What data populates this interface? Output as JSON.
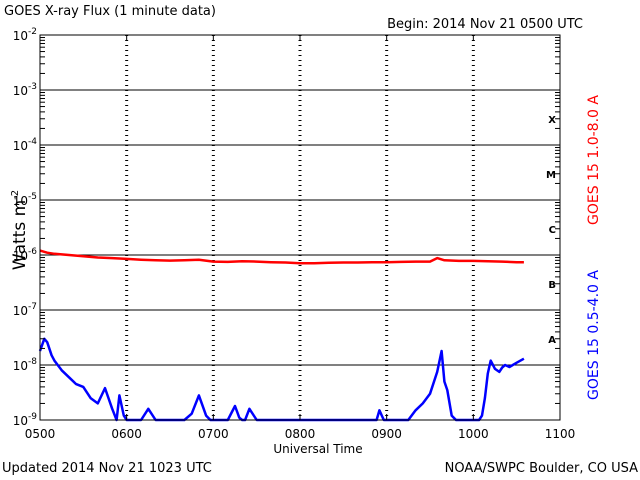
{
  "chart_data": {
    "type": "line",
    "title": "GOES X-ray Flux (1 minute data)",
    "begin": "Begin: 2014 Nov 21 0500 UTC",
    "xlabel": "Universal Time",
    "ylabel": "Watts m",
    "ylabel_exp": "-2",
    "y_scale": "log",
    "ylim": [
      1e-09,
      0.01
    ],
    "xlim": [
      "0500",
      "1100"
    ],
    "grid": true,
    "x_ticks": [
      "0500",
      "0600",
      "0700",
      "0800",
      "0900",
      "1000",
      "1100"
    ],
    "y_ticks": [
      {
        "value": 0.01,
        "base": "10",
        "exp": "-2"
      },
      {
        "value": 0.001,
        "base": "10",
        "exp": "-3"
      },
      {
        "value": 0.0001,
        "base": "10",
        "exp": "-4"
      },
      {
        "value": 1e-05,
        "base": "10",
        "exp": "-5"
      },
      {
        "value": 1e-06,
        "base": "10",
        "exp": "-6"
      },
      {
        "value": 1e-07,
        "base": "10",
        "exp": "-7"
      },
      {
        "value": 1e-08,
        "base": "10",
        "exp": "-8"
      },
      {
        "value": 1e-09,
        "base": "10",
        "exp": "-9"
      }
    ],
    "flare_classes": [
      {
        "label": "X",
        "value": 0.0003
      },
      {
        "label": "M",
        "value": 3e-05
      },
      {
        "label": "C",
        "value": 3e-06
      },
      {
        "label": "B",
        "value": 3e-07
      },
      {
        "label": "A",
        "value": 3e-08
      }
    ],
    "series": [
      {
        "name": "GOES 15 1.0-8.0 A",
        "color": "#ff0000",
        "x": [
          "0500",
          "0505",
          "0510",
          "0520",
          "0530",
          "0540",
          "0550",
          "0600",
          "0610",
          "0620",
          "0630",
          "0640",
          "0650",
          "0700",
          "0710",
          "0720",
          "0730",
          "0740",
          "0750",
          "0800",
          "0810",
          "0820",
          "0830",
          "0840",
          "0850",
          "0900",
          "0910",
          "0920",
          "0930",
          "0935",
          "0940",
          "0950",
          "1000",
          "1010",
          "1020",
          "1030",
          "1035"
        ],
        "y": [
          1.2e-06,
          1.1e-06,
          1.05e-06,
          1e-06,
          9.5e-07,
          9e-07,
          8.8e-07,
          8.5e-07,
          8.2e-07,
          8e-07,
          7.9e-07,
          8e-07,
          8.2e-07,
          7.6e-07,
          7.5e-07,
          7.7e-07,
          7.6e-07,
          7.4e-07,
          7.3e-07,
          7.1e-07,
          7.1e-07,
          7.2e-07,
          7.3e-07,
          7.3e-07,
          7.4e-07,
          7.4e-07,
          7.5e-07,
          7.6e-07,
          7.6e-07,
          8.8e-07,
          8e-07,
          7.8e-07,
          7.8e-07,
          7.7e-07,
          7.6e-07,
          7.4e-07,
          7.4e-07
        ]
      },
      {
        "name": "GOES 15 0.5-4.0 A",
        "color": "#0000ff",
        "x": [
          "0500",
          "0503",
          "0505",
          "0508",
          "0510",
          "0515",
          "0520",
          "0525",
          "0530",
          "0535",
          "0540",
          "0545",
          "0550",
          "0553",
          "0555",
          "0558",
          "0600",
          "0605",
          "0610",
          "0615",
          "0620",
          "0625",
          "0630",
          "0635",
          "0640",
          "0645",
          "0650",
          "0655",
          "0658",
          "0700",
          "0703",
          "0705",
          "0710",
          "0715",
          "0718",
          "0720",
          "0722",
          "0725",
          "0730",
          "0735",
          "0740",
          "0745",
          "0750",
          "0755",
          "0800",
          "0810",
          "0820",
          "0830",
          "0835",
          "0838",
          "0840",
          "0845",
          "0850",
          "0853",
          "0855",
          "0858",
          "0900",
          "0902",
          "0905",
          "0908",
          "0910",
          "0915",
          "0920",
          "0925",
          "0930",
          "0935",
          "0938",
          "0940",
          "0942",
          "0945",
          "0948",
          "0950",
          "0952",
          "0955",
          "0958",
          "1000",
          "1002",
          "1004",
          "1006",
          "1008",
          "1010",
          "1012",
          "1015",
          "1018",
          "1020",
          "1022",
          "1025",
          "1030",
          "1035"
        ],
        "y": [
          1.8e-08,
          3e-08,
          2.6e-08,
          1.5e-08,
          1.2e-08,
          8e-09,
          6e-09,
          4.5e-09,
          4e-09,
          2.5e-09,
          2e-09,
          3.8e-09,
          1.6e-09,
          1e-09,
          2.8e-09,
          1.2e-09,
          1e-09,
          1e-09,
          1e-09,
          1.6e-09,
          1e-09,
          1e-09,
          1e-09,
          1e-09,
          1e-09,
          1.3e-09,
          2.8e-09,
          1.2e-09,
          1e-09,
          1e-09,
          1e-09,
          1e-09,
          1e-09,
          1.8e-09,
          1.1e-09,
          1e-09,
          1e-09,
          1.6e-09,
          1e-09,
          1e-09,
          1e-09,
          1e-09,
          1e-09,
          1e-09,
          1e-09,
          1e-09,
          1e-09,
          1e-09,
          1e-09,
          1e-09,
          1e-09,
          1e-09,
          1e-09,
          1e-09,
          1.5e-09,
          1e-09,
          1e-09,
          1e-09,
          1e-09,
          1e-09,
          1e-09,
          1e-09,
          1.5e-09,
          2e-09,
          3e-09,
          7.5e-09,
          1.8e-08,
          5e-09,
          3.5e-09,
          1.2e-09,
          1e-09,
          1e-09,
          1e-09,
          1e-09,
          1e-09,
          1e-09,
          1e-09,
          1e-09,
          1.2e-09,
          2.5e-09,
          7e-09,
          1.2e-08,
          8.5e-09,
          7.5e-09,
          9e-09,
          1e-08,
          9.2e-09,
          1.1e-08,
          1.3e-08
        ]
      }
    ]
  },
  "footer": {
    "updated": "Updated 2014 Nov 21 1023 UTC",
    "credit": "NOAA/SWPC Boulder, CO USA"
  }
}
